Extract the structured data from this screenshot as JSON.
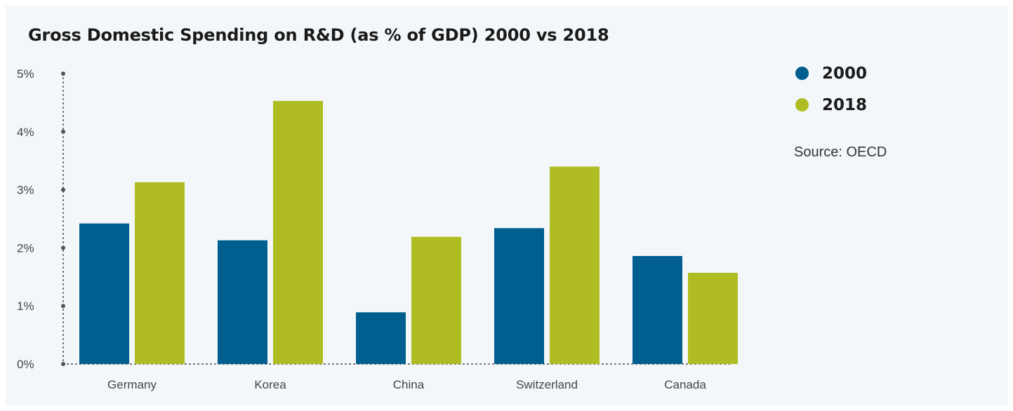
{
  "chart_data": {
    "type": "bar",
    "title": "Gross Domestic Spending on R&D (as % of GDP) 2000 vs 2018",
    "categories": [
      "Germany",
      "Korea",
      "China",
      "Switzerland",
      "Canada"
    ],
    "series": [
      {
        "name": "2000",
        "color": "#005f8e",
        "values": [
          2.42,
          2.13,
          0.89,
          2.34,
          1.86
        ]
      },
      {
        "name": "2018",
        "color": "#afbd22",
        "values": [
          3.13,
          4.53,
          2.19,
          3.4,
          1.57
        ]
      }
    ],
    "y_ticks": [
      "0%",
      "1%",
      "2%",
      "3%",
      "4%",
      "5%"
    ],
    "ylim": [
      0,
      5
    ],
    "xlabel": "",
    "ylabel": "",
    "grid": false,
    "legend_position": "right"
  },
  "source_text": "Source: OECD"
}
